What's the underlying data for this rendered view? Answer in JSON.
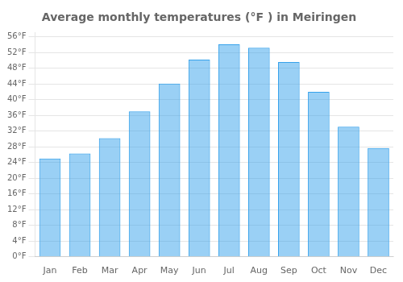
{
  "chart_data": {
    "type": "bar",
    "title": "Average monthly temperatures (°F ) in Meiringen",
    "categories": [
      "Jan",
      "Feb",
      "Mar",
      "Apr",
      "May",
      "Jun",
      "Jul",
      "Aug",
      "Sep",
      "Oct",
      "Nov",
      "Dec"
    ],
    "values": [
      25.0,
      26.3,
      30.2,
      37.0,
      44.1,
      50.2,
      54.1,
      53.2,
      49.6,
      42.0,
      33.1,
      27.7
    ],
    "ylim": [
      0,
      57
    ],
    "yticks": [
      {
        "value": 0,
        "label": "0°F"
      },
      {
        "value": 4,
        "label": "4°F"
      },
      {
        "value": 8,
        "label": "8°F"
      },
      {
        "value": 12,
        "label": "12°F"
      },
      {
        "value": 16,
        "label": "16°F"
      },
      {
        "value": 20,
        "label": "20°F"
      },
      {
        "value": 24,
        "label": "24°F"
      },
      {
        "value": 28,
        "label": "28°F"
      },
      {
        "value": 32,
        "label": "32°F"
      },
      {
        "value": 36,
        "label": "36°F"
      },
      {
        "value": 40,
        "label": "40°F"
      },
      {
        "value": 44,
        "label": "44°F"
      },
      {
        "value": 48,
        "label": "48°F"
      },
      {
        "value": 52,
        "label": "52°F"
      },
      {
        "value": 56,
        "label": "56°F"
      }
    ],
    "grid": true
  }
}
